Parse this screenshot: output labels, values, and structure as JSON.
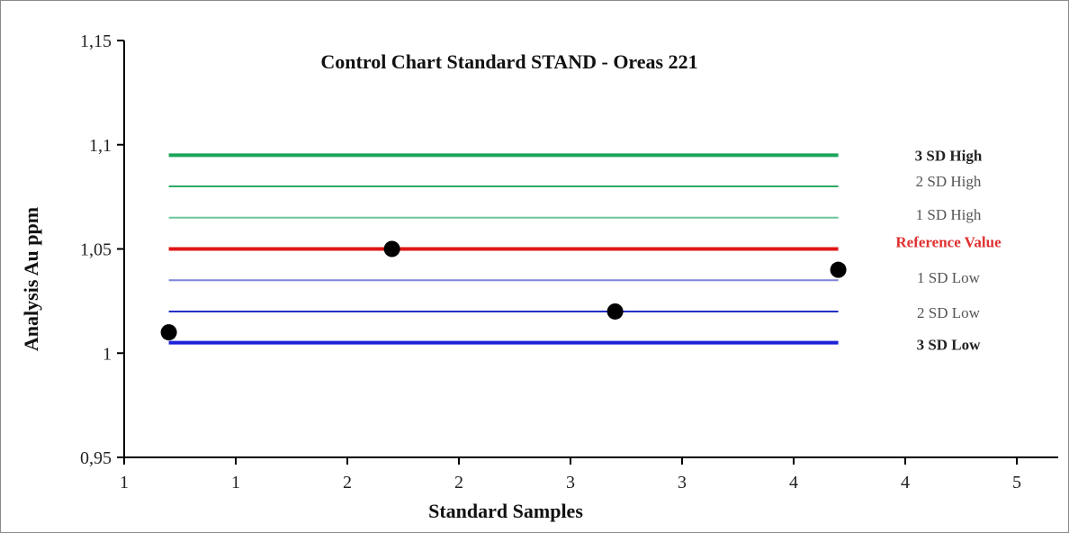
{
  "chart_data": {
    "type": "line",
    "title": "Control Chart Standard STAND - Oreas 221",
    "xlabel": "Standard Samples",
    "ylabel": "Analysis Au ppm",
    "xlim": [
      1,
      5.5
    ],
    "ylim": [
      0.95,
      1.15
    ],
    "y_ticks": [
      "0,95",
      "1",
      "1,05",
      "1,1",
      "1,15"
    ],
    "y_tick_values": [
      0.95,
      1.0,
      1.05,
      1.1,
      1.15
    ],
    "x_ticks": [
      "1",
      "1",
      "2",
      "2",
      "3",
      "3",
      "4",
      "4",
      "5"
    ],
    "x_tick_values": [
      1.0,
      1.5,
      2.0,
      2.5,
      3.0,
      3.5,
      4.0,
      4.5,
      5.0
    ],
    "grid": false,
    "legend": "right",
    "limit_x_range": [
      1.2,
      4.2
    ],
    "series": [
      {
        "name": "3 SD High",
        "value": 1.095,
        "color": "#1aa55a",
        "weight": "bold",
        "label_color": "#222222"
      },
      {
        "name": "2 SD High",
        "value": 1.08,
        "color": "#2aaa64",
        "weight": "normal",
        "label_color": "#555555"
      },
      {
        "name": "1 SD High",
        "value": 1.065,
        "color": "#6cc698",
        "weight": "normal",
        "label_color": "#555555"
      },
      {
        "name": "Reference Value",
        "value": 1.05,
        "color": "#e01616",
        "weight": "bold",
        "label_color": "#e03030"
      },
      {
        "name": "1 SD Low",
        "value": 1.035,
        "color": "#7b84d8",
        "weight": "normal",
        "label_color": "#555555"
      },
      {
        "name": "2 SD Low",
        "value": 1.02,
        "color": "#2430c8",
        "weight": "normal",
        "label_color": "#555555"
      },
      {
        "name": "3 SD Low",
        "value": 1.005,
        "color": "#1b22d6",
        "weight": "bold",
        "label_color": "#222222"
      }
    ],
    "points": {
      "name": "Samples",
      "x": [
        1.2,
        2.2,
        3.2,
        4.2
      ],
      "y": [
        1.01,
        1.05,
        1.02,
        1.04
      ],
      "color": "#000000"
    }
  }
}
